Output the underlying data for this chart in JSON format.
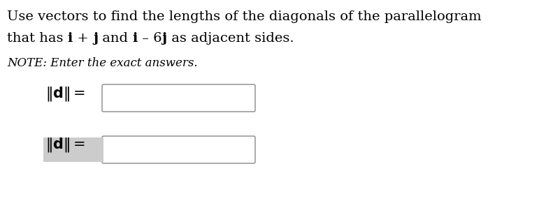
{
  "line1": "Use vectors to find the lengths of the diagonals of the parallelogram",
  "line2_pieces": [
    {
      "text": "that has ",
      "bold": false
    },
    {
      "text": "i",
      "bold": true
    },
    {
      "text": " + ",
      "bold": false
    },
    {
      "text": "j",
      "bold": true
    },
    {
      "text": " and ",
      "bold": false
    },
    {
      "text": "i",
      "bold": true
    },
    {
      "text": " – 6",
      "bold": false
    },
    {
      "text": "j",
      "bold": true
    },
    {
      "text": " as adjacent sides.",
      "bold": false
    }
  ],
  "note": "NOTE: Enter the exact answers.",
  "bg_color": "#ffffff",
  "text_color": "#000000",
  "box_edge_color": "#888888",
  "box_face_color": "#ffffff",
  "label2_bg_color": "#cccccc",
  "main_fs": 14,
  "note_fs": 12,
  "label_fs": 15
}
